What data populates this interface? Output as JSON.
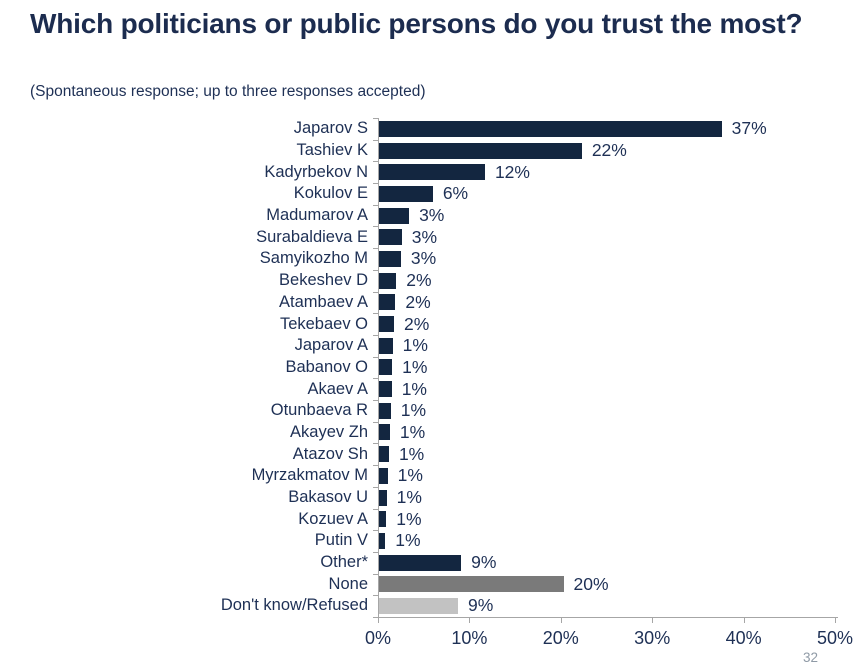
{
  "header": {
    "title": "Which politicians or public persons do you trust the most?",
    "subtitle": "(Spontaneous response; up to three responses accepted)"
  },
  "page_number": "32",
  "colors": {
    "bar_navy": "#132640",
    "bar_none_gray": "#7A7A7A",
    "bar_dont_know_gray": "#C2C2C2",
    "text_navy": "#1E3055",
    "axis_gray": "#A6A6A6",
    "page_number_gray": "#8F9AA6"
  },
  "chart_data": {
    "type": "bar",
    "orientation": "horizontal",
    "title": "Which politicians or public persons do you trust the most?",
    "subtitle": "(Spontaneous response; up to three responses accepted)",
    "categories": [
      "Japarov S",
      "Tashiev K",
      "Kadyrbekov N",
      "Kokulov E",
      "Madumarov A",
      "Surabaldieva E",
      "Samyikozho M",
      "Bekeshev D",
      "Atambaev A",
      "Tekebaev O",
      "Japarov A",
      "Babanov O",
      "Akaev A",
      "Otunbaeva R",
      "Akayev Zh",
      "Atazov Sh",
      "Myrzakmatov M",
      "Bakasov U",
      "Kozuev A",
      "Putin V",
      "Other*",
      "None",
      "Don't know/Refused"
    ],
    "values": [
      37,
      22,
      12,
      6,
      3,
      3,
      3,
      2,
      2,
      2,
      1,
      1,
      1,
      1,
      1,
      1,
      1,
      1,
      1,
      1,
      9,
      20,
      9
    ],
    "value_labels": [
      "37%",
      "22%",
      "12%",
      "6%",
      "3%",
      "3%",
      "3%",
      "2%",
      "2%",
      "2%",
      "1%",
      "1%",
      "1%",
      "1%",
      "1%",
      "1%",
      "1%",
      "1%",
      "1%",
      "1%",
      "9%",
      "20%",
      "9%"
    ],
    "bar_lengths_pct": [
      37.6,
      22.3,
      11.7,
      6.0,
      3.4,
      2.6,
      2.5,
      2.0,
      1.9,
      1.75,
      1.6,
      1.55,
      1.5,
      1.4,
      1.3,
      1.2,
      1.05,
      0.95,
      0.9,
      0.8,
      9.1,
      20.3,
      8.75
    ],
    "bar_colors": [
      "#132640",
      "#132640",
      "#132640",
      "#132640",
      "#132640",
      "#132640",
      "#132640",
      "#132640",
      "#132640",
      "#132640",
      "#132640",
      "#132640",
      "#132640",
      "#132640",
      "#132640",
      "#132640",
      "#132640",
      "#132640",
      "#132640",
      "#132640",
      "#132640",
      "#7A7A7A",
      "#C2C2C2"
    ],
    "x_tick_labels": [
      "0%",
      "10%",
      "20%",
      "30%",
      "40%",
      "50%"
    ],
    "x_tick_values": [
      0,
      10,
      20,
      30,
      40,
      50
    ],
    "xlim": [
      0,
      50
    ],
    "grid": false,
    "legend": false
  }
}
